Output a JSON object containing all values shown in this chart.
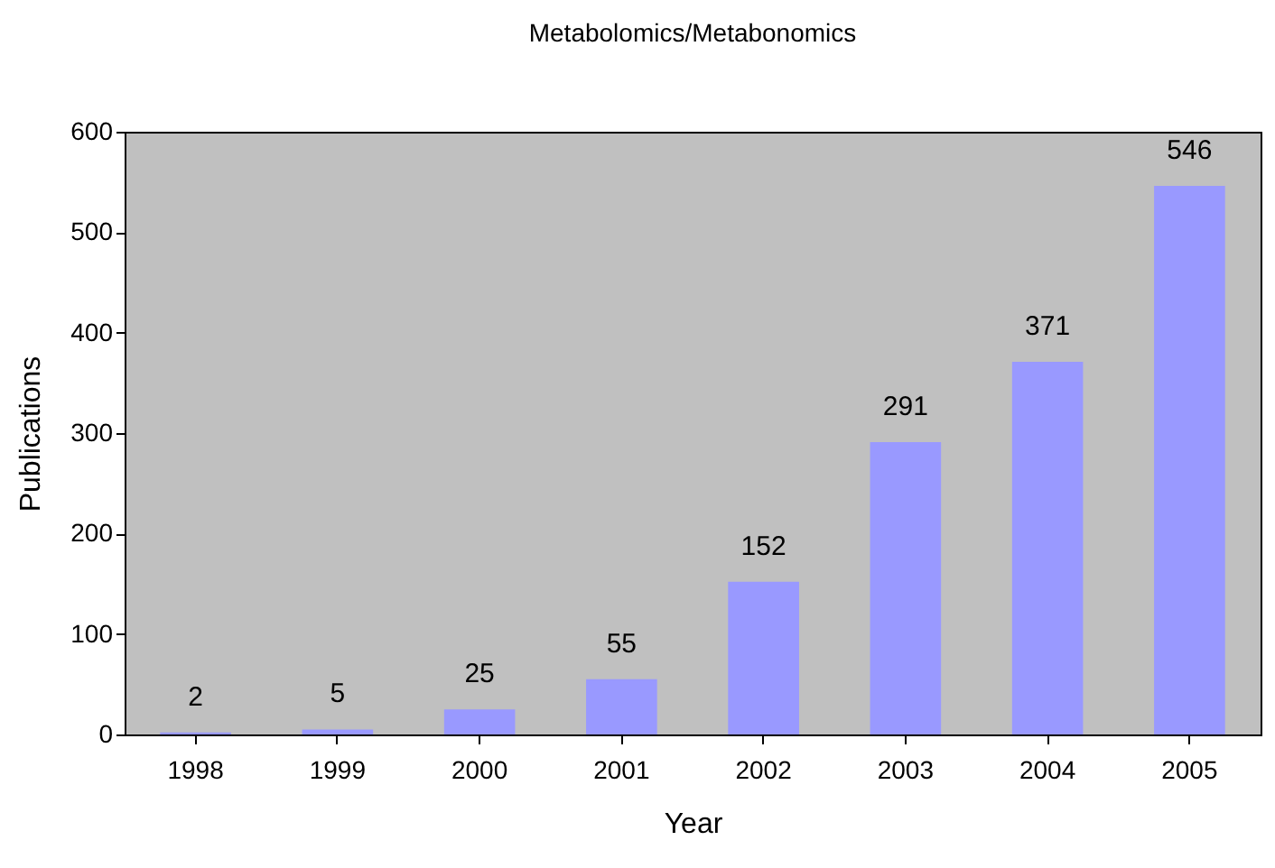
{
  "chart_data": {
    "type": "bar",
    "title": "Metabolomics/Metabonomics",
    "xlabel": "Year",
    "ylabel": "Publications",
    "categories": [
      "1998",
      "1999",
      "2000",
      "2001",
      "2002",
      "2003",
      "2004",
      "2005"
    ],
    "values": [
      2,
      5,
      25,
      55,
      152,
      291,
      371,
      546
    ],
    "color": "#9999ff",
    "ylim": [
      0,
      600
    ],
    "yticks": [
      0,
      100,
      200,
      300,
      400,
      500,
      600
    ],
    "grid": false,
    "data_labels": true
  }
}
